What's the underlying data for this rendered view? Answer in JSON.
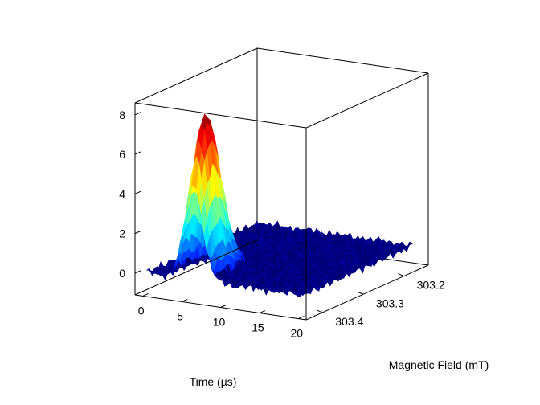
{
  "chart_data": {
    "type": "surface",
    "x_axis": {
      "label": "Time (µs)",
      "ticks": [
        0,
        5,
        10,
        15,
        20
      ],
      "tick_labels": [
        "0",
        "5",
        "10",
        "15",
        "20"
      ],
      "range": [
        -1,
        21
      ]
    },
    "y_axis": {
      "label": "Magnetic Field (mT)",
      "ticks": [
        303.2,
        303.3,
        303.4
      ],
      "tick_labels": [
        "303.2",
        "303.3",
        "303.4"
      ],
      "range": [
        303.14,
        303.44
      ]
    },
    "z_axis": {
      "label": "",
      "ticks": [
        0,
        2,
        4,
        6,
        8
      ],
      "tick_labels": [
        "0",
        "2",
        "4",
        "6",
        "8"
      ],
      "range": [
        -1.1,
        8.6
      ]
    },
    "peak": {
      "time": 6,
      "field": 303.4,
      "height": 8.0
    },
    "colormap": "jet",
    "grid": false
  }
}
